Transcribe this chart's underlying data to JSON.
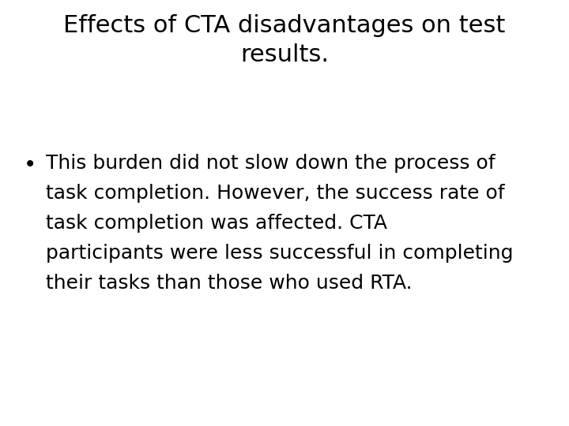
{
  "title_line1": "Effects of CTA disadvantages on test",
  "title_line2": "results.",
  "bullet_lines": [
    "This burden did not slow down the process of",
    "task completion. However, the success rate of",
    "task completion was affected. CTA",
    "participants were less successful in completing",
    "their tasks than those who used RTA."
  ],
  "background_color": "#ffffff",
  "text_color": "#000000",
  "title_fontsize": 22,
  "body_fontsize": 18,
  "font_family": "DejaVu Sans"
}
